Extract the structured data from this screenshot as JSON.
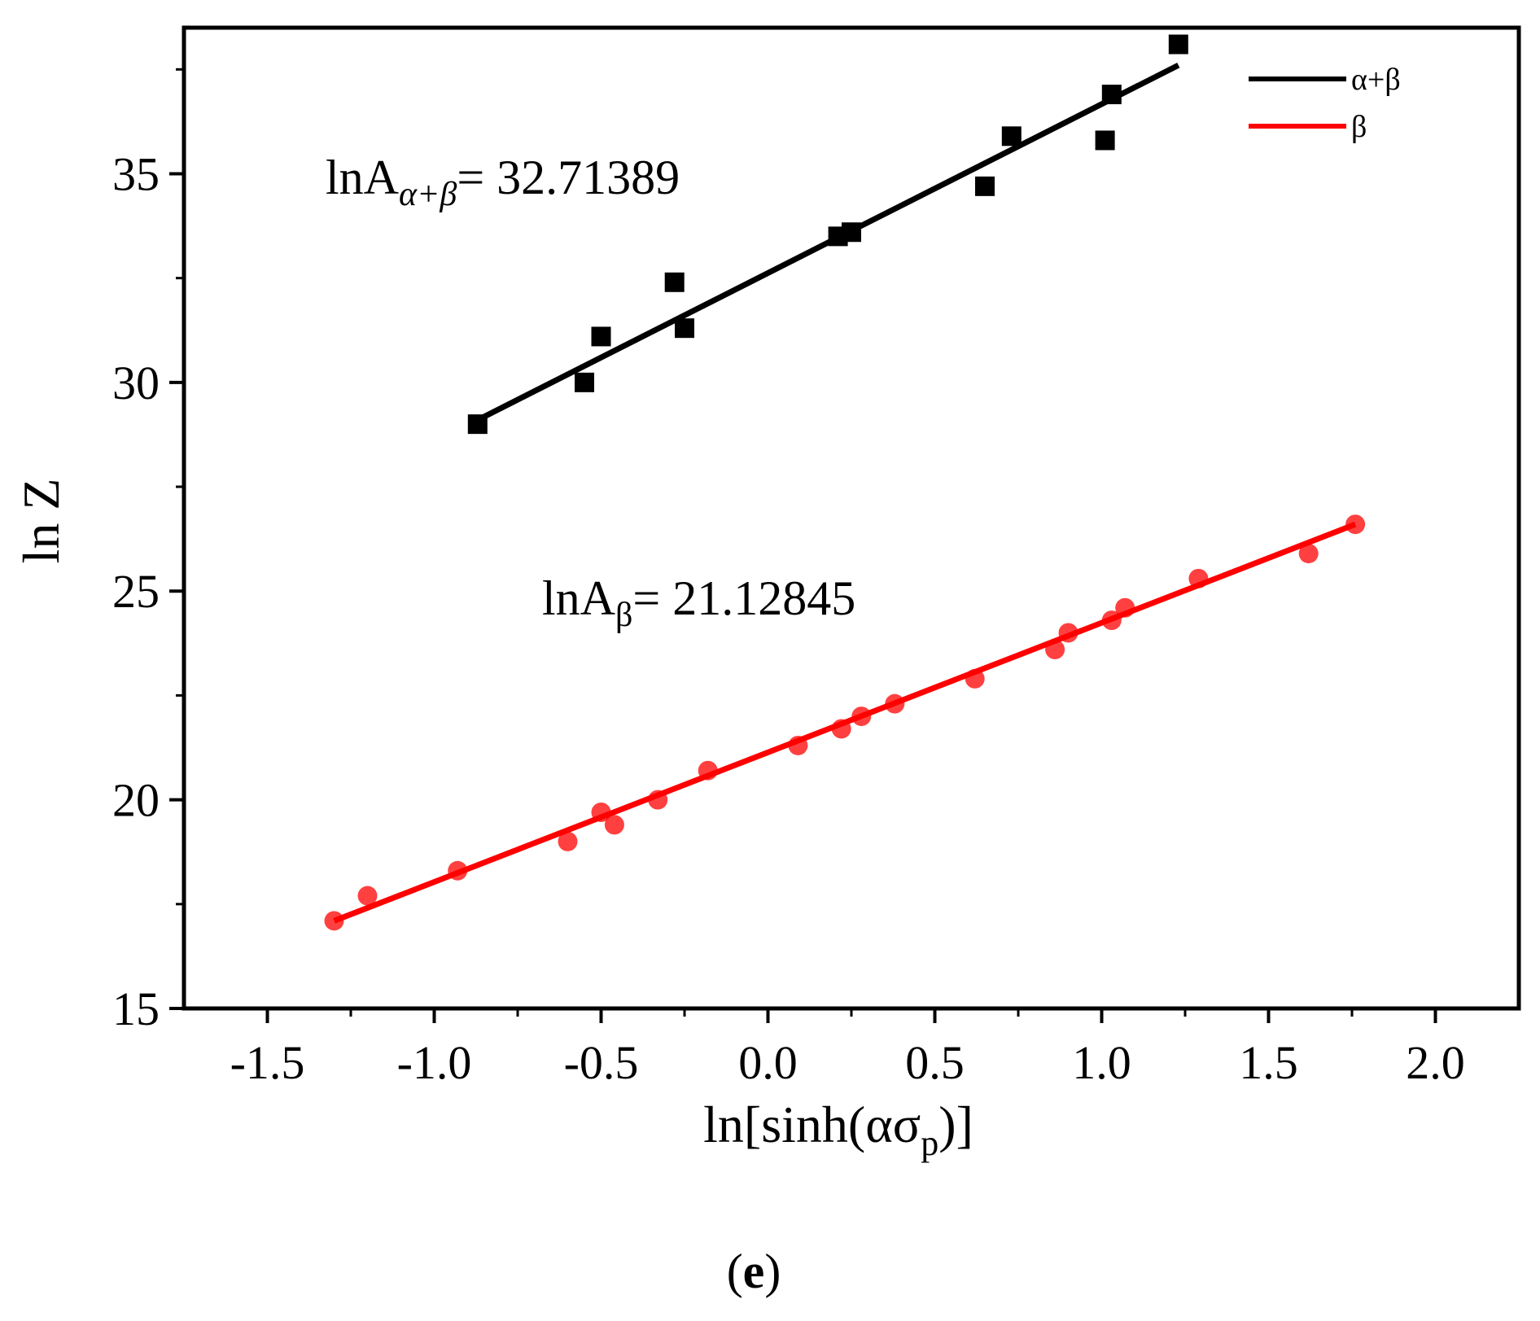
{
  "chart_data": {
    "type": "scatter",
    "xlabel": "ln[sinh(ασp)]",
    "xlabel_parts": {
      "main": "ln[sinh(ασ",
      "sub": "p",
      "close": ")]"
    },
    "ylabel": "ln Z",
    "xlim": [
      -1.75,
      2.25
    ],
    "ylim": [
      15,
      38.5
    ],
    "xticks": [
      -1.5,
      -1.0,
      -0.5,
      0.0,
      0.5,
      1.0,
      1.5,
      2.0
    ],
    "xtick_labels": [
      "-1.5",
      "-1.0",
      "-0.5",
      "0.0",
      "0.5",
      "1.0",
      "1.5",
      "2.0"
    ],
    "yticks": [
      15,
      20,
      25,
      30,
      35
    ],
    "ytick_labels": [
      "15",
      "20",
      "25",
      "30",
      "35"
    ],
    "legend_position": "top-right",
    "series": [
      {
        "name": "α+β",
        "color": "#000000",
        "marker": "square",
        "points": [
          [
            -0.87,
            29.0
          ],
          [
            -0.55,
            30.0
          ],
          [
            -0.5,
            31.1
          ],
          [
            -0.28,
            32.4
          ],
          [
            -0.25,
            31.3
          ],
          [
            0.21,
            33.5
          ],
          [
            0.25,
            33.6
          ],
          [
            0.65,
            34.7
          ],
          [
            0.73,
            35.9
          ],
          [
            1.01,
            35.8
          ],
          [
            1.03,
            36.9
          ],
          [
            1.23,
            38.1
          ]
        ],
        "fit": {
          "x": [
            -0.87,
            1.23
          ],
          "y": [
            29.1,
            37.6
          ]
        },
        "annotation": {
          "prefix": "lnA",
          "sub": "α+β",
          "text": "= 32.71389"
        }
      },
      {
        "name": "β",
        "color": "#ff0000",
        "marker": "circle",
        "points": [
          [
            -1.3,
            17.1
          ],
          [
            -1.2,
            17.7
          ],
          [
            -0.93,
            18.3
          ],
          [
            -0.6,
            19.0
          ],
          [
            -0.5,
            19.7
          ],
          [
            -0.46,
            19.4
          ],
          [
            -0.33,
            20.0
          ],
          [
            -0.18,
            20.7
          ],
          [
            0.09,
            21.3
          ],
          [
            0.22,
            21.7
          ],
          [
            0.28,
            22.0
          ],
          [
            0.38,
            22.3
          ],
          [
            0.62,
            22.9
          ],
          [
            0.86,
            23.6
          ],
          [
            0.9,
            24.0
          ],
          [
            1.03,
            24.3
          ],
          [
            1.07,
            24.6
          ],
          [
            1.29,
            25.3
          ],
          [
            1.62,
            25.9
          ],
          [
            1.76,
            26.6
          ]
        ],
        "fit": {
          "x": [
            -1.3,
            1.76
          ],
          "y": [
            17.1,
            26.6
          ]
        },
        "annotation": {
          "prefix": "lnA",
          "sub": "β",
          "text": "= 21.12845"
        }
      }
    ],
    "caption": {
      "open": "(",
      "letter": "e",
      "close": ")"
    }
  }
}
